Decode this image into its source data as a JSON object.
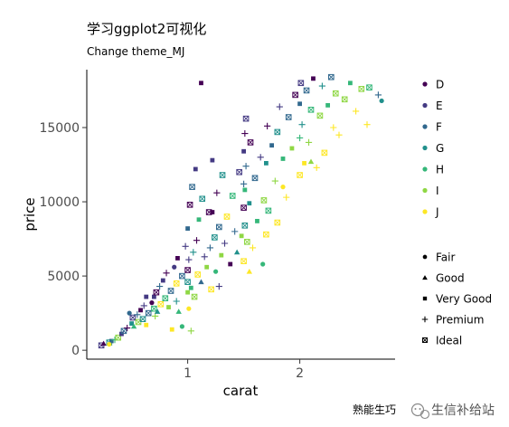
{
  "chart_data": {
    "type": "scatter",
    "title": "学习ggplot2可视化",
    "subtitle": "Change theme_MJ",
    "xlabel": "carat",
    "ylabel": "price",
    "xlim": [
      0.1,
      2.85
    ],
    "ylim": [
      -600,
      18900
    ],
    "xticks": [
      1,
      2
    ],
    "yticks": [
      0,
      5000,
      10000,
      15000
    ],
    "grid": false,
    "legend_position": "right",
    "color_legend": {
      "entries": [
        {
          "label": "D",
          "color": "#440154"
        },
        {
          "label": "E",
          "color": "#443A83"
        },
        {
          "label": "F",
          "color": "#31688E"
        },
        {
          "label": "G",
          "color": "#21908C"
        },
        {
          "label": "H",
          "color": "#35B779"
        },
        {
          "label": "I",
          "color": "#8FD744"
        },
        {
          "label": "J",
          "color": "#FDE725"
        }
      ]
    },
    "shape_legend": {
      "entries": [
        {
          "label": "Fair",
          "shape": "circle"
        },
        {
          "label": "Good",
          "shape": "triangle"
        },
        {
          "label": "Very Good",
          "shape": "square"
        },
        {
          "label": "Premium",
          "shape": "plus"
        },
        {
          "label": "Ideal",
          "shape": "square-x"
        }
      ]
    },
    "points": [
      [
        0.23,
        326,
        1,
        4
      ],
      [
        0.25,
        450,
        0,
        1
      ],
      [
        0.3,
        520,
        3,
        4
      ],
      [
        0.32,
        620,
        2,
        2
      ],
      [
        0.35,
        700,
        4,
        3
      ],
      [
        0.38,
        850,
        5,
        4
      ],
      [
        0.3,
        400,
        6,
        0
      ],
      [
        0.41,
        1100,
        1,
        2
      ],
      [
        0.43,
        1300,
        2,
        4
      ],
      [
        0.46,
        1500,
        0,
        3
      ],
      [
        0.5,
        1800,
        3,
        2
      ],
      [
        0.51,
        2200,
        1,
        4
      ],
      [
        0.52,
        1600,
        4,
        1
      ],
      [
        0.55,
        2400,
        2,
        3
      ],
      [
        0.56,
        1900,
        5,
        4
      ],
      [
        0.58,
        2700,
        0,
        2
      ],
      [
        0.6,
        2100,
        3,
        4
      ],
      [
        0.61,
        3000,
        1,
        3
      ],
      [
        0.63,
        1700,
        6,
        2
      ],
      [
        0.65,
        2500,
        2,
        4
      ],
      [
        0.68,
        3200,
        0,
        0
      ],
      [
        0.7,
        2800,
        4,
        4
      ],
      [
        0.7,
        3600,
        1,
        2
      ],
      [
        0.71,
        2300,
        5,
        3
      ],
      [
        0.72,
        3900,
        0,
        4
      ],
      [
        0.73,
        2600,
        3,
        1
      ],
      [
        0.75,
        4300,
        2,
        3
      ],
      [
        0.76,
        3100,
        6,
        4
      ],
      [
        0.78,
        4700,
        1,
        2
      ],
      [
        0.8,
        3500,
        4,
        4
      ],
      [
        0.81,
        5200,
        0,
        3
      ],
      [
        0.83,
        2900,
        5,
        2
      ],
      [
        0.85,
        4000,
        2,
        4
      ],
      [
        0.88,
        5600,
        1,
        0
      ],
      [
        0.9,
        3300,
        3,
        3
      ],
      [
        0.9,
        4500,
        6,
        4
      ],
      [
        0.91,
        6200,
        0,
        2
      ],
      [
        0.92,
        2600,
        4,
        1
      ],
      [
        0.95,
        5000,
        2,
        4
      ],
      [
        0.98,
        7000,
        1,
        3
      ],
      [
        1.0,
        3900,
        5,
        2
      ],
      [
        1.0,
        4600,
        3,
        4
      ],
      [
        1.0,
        5400,
        0,
        4
      ],
      [
        1.0,
        8200,
        2,
        2
      ],
      [
        1.01,
        6100,
        1,
        3
      ],
      [
        1.01,
        2800,
        6,
        0
      ],
      [
        1.02,
        9800,
        0,
        4
      ],
      [
        1.03,
        4200,
        4,
        2
      ],
      [
        1.04,
        11000,
        2,
        4
      ],
      [
        1.05,
        6600,
        3,
        3
      ],
      [
        1.06,
        3600,
        5,
        4
      ],
      [
        1.07,
        12200,
        1,
        2
      ],
      [
        1.08,
        7400,
        0,
        3
      ],
      [
        1.09,
        5100,
        6,
        4
      ],
      [
        1.1,
        8800,
        4,
        2
      ],
      [
        1.12,
        4600,
        2,
        1
      ],
      [
        1.13,
        10200,
        3,
        4
      ],
      [
        1.15,
        6300,
        1,
        3
      ],
      [
        1.17,
        5600,
        5,
        2
      ],
      [
        1.19,
        9300,
        0,
        4
      ],
      [
        1.2,
        6900,
        2,
        3
      ],
      [
        1.21,
        4100,
        6,
        4
      ],
      [
        1.22,
        12800,
        1,
        2
      ],
      [
        1.24,
        7600,
        3,
        4
      ],
      [
        1.25,
        5300,
        4,
        0
      ],
      [
        1.26,
        10600,
        0,
        3
      ],
      [
        1.28,
        8300,
        2,
        4
      ],
      [
        1.3,
        6400,
        5,
        2
      ],
      [
        1.31,
        11800,
        3,
        4
      ],
      [
        1.33,
        7200,
        1,
        3
      ],
      [
        1.35,
        9000,
        6,
        4
      ],
      [
        1.38,
        5800,
        0,
        2
      ],
      [
        1.4,
        10400,
        4,
        4
      ],
      [
        1.42,
        8000,
        2,
        3
      ],
      [
        1.44,
        6600,
        3,
        1
      ],
      [
        1.46,
        12000,
        1,
        4
      ],
      [
        1.48,
        7700,
        5,
        2
      ],
      [
        1.5,
        9600,
        0,
        4
      ],
      [
        1.5,
        11200,
        2,
        3
      ],
      [
        1.5,
        13400,
        1,
        2
      ],
      [
        1.5,
        6000,
        6,
        4
      ],
      [
        1.51,
        14600,
        0,
        3
      ],
      [
        1.51,
        8400,
        3,
        4
      ],
      [
        1.51,
        10800,
        4,
        2
      ],
      [
        1.52,
        15600,
        1,
        4
      ],
      [
        1.52,
        12400,
        2,
        3
      ],
      [
        1.53,
        7300,
        5,
        4
      ],
      [
        1.55,
        9900,
        3,
        2
      ],
      [
        1.56,
        14000,
        0,
        4
      ],
      [
        1.58,
        6900,
        6,
        3
      ],
      [
        1.6,
        11600,
        2,
        4
      ],
      [
        1.62,
        8700,
        4,
        2
      ],
      [
        1.65,
        13000,
        1,
        3
      ],
      [
        1.68,
        10100,
        5,
        4
      ],
      [
        1.7,
        12600,
        3,
        2
      ],
      [
        1.7,
        7800,
        6,
        4
      ],
      [
        1.71,
        15100,
        0,
        3
      ],
      [
        1.72,
        9400,
        4,
        4
      ],
      [
        1.75,
        13800,
        2,
        2
      ],
      [
        1.78,
        11400,
        5,
        3
      ],
      [
        1.8,
        8600,
        6,
        4
      ],
      [
        1.8,
        14700,
        3,
        4
      ],
      [
        1.82,
        16400,
        1,
        3
      ],
      [
        1.85,
        12900,
        4,
        2
      ],
      [
        1.88,
        10300,
        6,
        3
      ],
      [
        1.9,
        15700,
        2,
        4
      ],
      [
        1.93,
        13600,
        5,
        2
      ],
      [
        1.96,
        17200,
        0,
        4
      ],
      [
        2.0,
        11800,
        6,
        4
      ],
      [
        2.0,
        14300,
        4,
        3
      ],
      [
        2.0,
        16600,
        2,
        2
      ],
      [
        2.01,
        18000,
        1,
        4
      ],
      [
        2.02,
        15200,
        3,
        3
      ],
      [
        2.04,
        12600,
        6,
        2
      ],
      [
        2.06,
        17500,
        2,
        4
      ],
      [
        2.08,
        14000,
        5,
        3
      ],
      [
        2.1,
        16200,
        4,
        4
      ],
      [
        2.12,
        18300,
        0,
        2
      ],
      [
        2.15,
        12300,
        6,
        3
      ],
      [
        2.18,
        15800,
        5,
        4
      ],
      [
        2.2,
        17800,
        3,
        3
      ],
      [
        2.22,
        13300,
        6,
        4
      ],
      [
        2.25,
        16500,
        4,
        2
      ],
      [
        2.28,
        18400,
        2,
        4
      ],
      [
        2.3,
        15000,
        6,
        3
      ],
      [
        2.32,
        17300,
        5,
        4
      ],
      [
        2.35,
        14500,
        6,
        3
      ],
      [
        2.4,
        16900,
        5,
        4
      ],
      [
        2.45,
        18000,
        4,
        2
      ],
      [
        2.5,
        16100,
        6,
        3
      ],
      [
        2.55,
        17600,
        5,
        4
      ],
      [
        2.6,
        15200,
        6,
        3
      ],
      [
        2.62,
        17700,
        4,
        4
      ],
      [
        2.7,
        17200,
        2,
        3
      ],
      [
        2.73,
        16800,
        3,
        0
      ],
      [
        1.67,
        5800,
        4,
        0
      ],
      [
        2.1,
        12700,
        5,
        1
      ],
      [
        1.22,
        9300,
        0,
        2
      ],
      [
        1.12,
        18000,
        0,
        2
      ],
      [
        1.85,
        11000,
        6,
        0
      ],
      [
        1.28,
        4300,
        1,
        3
      ],
      [
        1.55,
        5300,
        6,
        1
      ],
      [
        0.48,
        2500,
        2,
        0
      ],
      [
        0.63,
        3600,
        1,
        2
      ],
      [
        0.86,
        1400,
        6,
        2
      ],
      [
        0.95,
        1600,
        4,
        0
      ],
      [
        1.03,
        1300,
        5,
        3
      ]
    ]
  },
  "footer": {
    "author": "熟能生巧",
    "wechat_name": "生信补给站",
    "wechat_icon": "wechat-icon"
  }
}
